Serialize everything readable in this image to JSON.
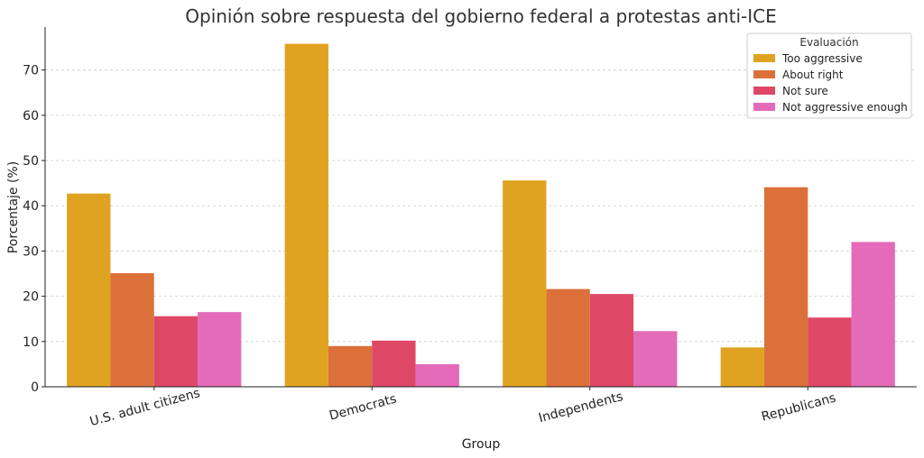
{
  "chart_data": {
    "type": "bar",
    "title": "Opinión sobre respuesta del gobierno federal a protestas anti-ICE",
    "xlabel": "Group",
    "ylabel": "Porcentaje (%)",
    "categories": [
      "U.S. adult citizens",
      "Democrats",
      "Independents",
      "Republicans"
    ],
    "series": [
      {
        "name": "Too aggressive",
        "color": "#E0A321",
        "values": [
          42.7,
          75.8,
          45.6,
          8.7
        ]
      },
      {
        "name": "About right",
        "color": "#DC703A",
        "values": [
          25.1,
          9.0,
          21.6,
          44.1
        ]
      },
      {
        "name": "Not sure",
        "color": "#DE4866",
        "values": [
          15.6,
          10.2,
          20.5,
          15.3
        ]
      },
      {
        "name": "Not aggressive enough",
        "color": "#E46BB9",
        "values": [
          16.5,
          5.0,
          12.3,
          32.0
        ]
      }
    ],
    "ylim": [
      0,
      79.5
    ],
    "yticks": [
      0,
      10,
      20,
      30,
      40,
      50,
      60,
      70
    ],
    "grid": "y-dashed",
    "legend_title": "Evaluación",
    "legend_position": "top-right"
  }
}
